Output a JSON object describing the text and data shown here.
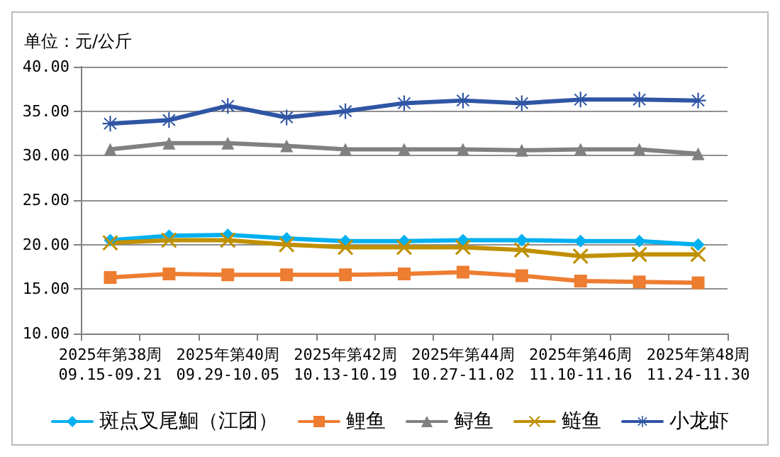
{
  "chart_data": {
    "type": "line",
    "ylabel": "单位：元/公斤",
    "categories": [
      "2025年第38周\n09.15-09.21",
      null,
      "2025年第40周\n09.29-10.05",
      null,
      "2025年第42周\n10.13-10.19",
      null,
      "2025年第44周\n10.27-11.02",
      null,
      "2025年第46周\n11.10-11.16",
      null,
      "2025年第48周\n11.24-11.30"
    ],
    "series": [
      {
        "name": "斑点叉尾鮰（江团）",
        "color": "#00b0f0",
        "marker": "diamond",
        "values": [
          20.5,
          21.0,
          21.1,
          20.7,
          20.4,
          20.4,
          20.5,
          20.5,
          20.4,
          20.4,
          20.0
        ]
      },
      {
        "name": "鲤鱼",
        "color": "#ed7d31",
        "marker": "square",
        "values": [
          16.3,
          16.7,
          16.6,
          16.6,
          16.6,
          16.7,
          16.9,
          16.5,
          15.9,
          15.8,
          15.7
        ]
      },
      {
        "name": "鲟鱼",
        "color": "#808080",
        "marker": "triangle",
        "values": [
          30.7,
          31.4,
          31.4,
          31.1,
          30.7,
          30.7,
          30.7,
          30.6,
          30.7,
          30.7,
          30.2
        ]
      },
      {
        "name": "鲢鱼",
        "color": "#bf9000",
        "marker": "cross",
        "values": [
          20.2,
          20.5,
          20.5,
          20.0,
          19.7,
          19.7,
          19.7,
          19.4,
          18.7,
          18.9,
          18.9
        ]
      },
      {
        "name": "小龙虾",
        "color": "#2f55a4",
        "marker": "star",
        "values": [
          33.6,
          34.0,
          35.6,
          34.3,
          35.0,
          35.9,
          36.2,
          35.9,
          36.3,
          36.3,
          36.2
        ]
      }
    ],
    "ylim": [
      10,
      40
    ],
    "yticks": [
      {
        "value": 10,
        "label": "10.00"
      },
      {
        "value": 15,
        "label": "15.00"
      },
      {
        "value": 20,
        "label": "20.00"
      },
      {
        "value": 25,
        "label": "25.00"
      },
      {
        "value": 30,
        "label": "30.00"
      },
      {
        "value": 35,
        "label": "35.00"
      },
      {
        "value": 40,
        "label": "40.00"
      }
    ],
    "grid": "y",
    "legend": "bottom"
  }
}
